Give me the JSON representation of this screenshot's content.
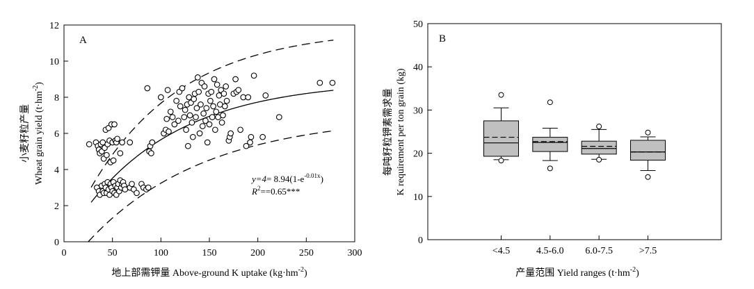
{
  "chart_data": [
    {
      "type": "scatter",
      "panel_label": "A",
      "xlabel": "地上部需钾量 Above-ground K uptake (kg·hm",
      "xlabel_sup": "-2",
      "xlabel_end": ")",
      "ylabel_cn": "小麦籽粒产量",
      "ylabel_en": "Wheat grain yield (t·hm",
      "ylabel_sup": "-2",
      "ylabel_end": ")",
      "xlim": [
        0,
        300
      ],
      "ylim": [
        0,
        12
      ],
      "xticks": [
        0,
        50,
        100,
        150,
        200,
        250,
        300
      ],
      "yticks": [
        0,
        2,
        4,
        6,
        8,
        10,
        12
      ],
      "equation_lhs": "y=4",
      "equation_mid": "= 8.94(1-e",
      "equation_sup": "-0.01x",
      "equation_end": ")",
      "r2_label": "R",
      "r2_sup": "2",
      "r2_value": "==0.65***",
      "fit_curve": {
        "a": 8.94,
        "b": 0.01,
        "x_range": [
          28,
          278
        ]
      },
      "upper_bound": {
        "a": 11.8,
        "b": 0.0105,
        "x_range": [
          28,
          278
        ]
      },
      "lower_bound": {
        "a": 7.0,
        "b": 0.0083,
        "x_range": [
          25,
          278
        ],
        "x0": 25
      },
      "points": [
        [
          26,
          5.4
        ],
        [
          33,
          5.5
        ],
        [
          35,
          5.3
        ],
        [
          36,
          5.1
        ],
        [
          37,
          4.9
        ],
        [
          38,
          5.4
        ],
        [
          39,
          5.0
        ],
        [
          40,
          5.5
        ],
        [
          41,
          4.6
        ],
        [
          42,
          5.2
        ],
        [
          43,
          6.2
        ],
        [
          44,
          4.8
        ],
        [
          45,
          5.4
        ],
        [
          46,
          6.3
        ],
        [
          47,
          5.6
        ],
        [
          48,
          4.4
        ],
        [
          49,
          6.5
        ],
        [
          50,
          5.5
        ],
        [
          51,
          4.5
        ],
        [
          52,
          6.5
        ],
        [
          53,
          5.6
        ],
        [
          54,
          5.5
        ],
        [
          55,
          5.7
        ],
        [
          58,
          4.9
        ],
        [
          60,
          5.5
        ],
        [
          34,
          3.0
        ],
        [
          36,
          2.8
        ],
        [
          37,
          2.6
        ],
        [
          39,
          3.1
        ],
        [
          40,
          2.8
        ],
        [
          41,
          2.7
        ],
        [
          42,
          3.2
        ],
        [
          43,
          3.0
        ],
        [
          44,
          2.7
        ],
        [
          45,
          3.3
        ],
        [
          46,
          2.9
        ],
        [
          47,
          2.6
        ],
        [
          48,
          3.2
        ],
        [
          49,
          3.0
        ],
        [
          50,
          2.8
        ],
        [
          51,
          3.3
        ],
        [
          52,
          2.7
        ],
        [
          53,
          3.1
        ],
        [
          54,
          2.6
        ],
        [
          55,
          3.0
        ],
        [
          56,
          3.2
        ],
        [
          57,
          2.8
        ],
        [
          58,
          3.4
        ],
        [
          59,
          3.0
        ],
        [
          60,
          3.2
        ],
        [
          61,
          3.3
        ],
        [
          62,
          3.1
        ],
        [
          63,
          2.9
        ],
        [
          68,
          3.0
        ],
        [
          70,
          3.2
        ],
        [
          72,
          2.9
        ],
        [
          75,
          2.7
        ],
        [
          80,
          3.2
        ],
        [
          82,
          3.0
        ],
        [
          85,
          2.9
        ],
        [
          87,
          3.0
        ],
        [
          68,
          5.5
        ],
        [
          86,
          8.5
        ],
        [
          88,
          5.0
        ],
        [
          89,
          5.3
        ],
        [
          90,
          4.9
        ],
        [
          91,
          5.5
        ],
        [
          100,
          8.0
        ],
        [
          103,
          6.0
        ],
        [
          105,
          6.2
        ],
        [
          106,
          6.8
        ],
        [
          107,
          8.4
        ],
        [
          108,
          6.1
        ],
        [
          110,
          7.2
        ],
        [
          112,
          6.9
        ],
        [
          114,
          6.5
        ],
        [
          116,
          7.8
        ],
        [
          118,
          6.7
        ],
        [
          119,
          8.3
        ],
        [
          120,
          7.5
        ],
        [
          122,
          8.5
        ],
        [
          124,
          6.9
        ],
        [
          125,
          7.3
        ],
        [
          126,
          6.2
        ],
        [
          127,
          7.6
        ],
        [
          128,
          5.3
        ],
        [
          129,
          8.0
        ],
        [
          130,
          7.0
        ],
        [
          131,
          7.7
        ],
        [
          132,
          6.6
        ],
        [
          133,
          5.8
        ],
        [
          134,
          7.9
        ],
        [
          135,
          8.2
        ],
        [
          136,
          6.9
        ],
        [
          137,
          7.4
        ],
        [
          138,
          9.1
        ],
        [
          139,
          8.3
        ],
        [
          140,
          6.0
        ],
        [
          141,
          7.6
        ],
        [
          142,
          8.8
        ],
        [
          143,
          6.4
        ],
        [
          144,
          7.1
        ],
        [
          145,
          8.6
        ],
        [
          146,
          6.7
        ],
        [
          147,
          7.4
        ],
        [
          148,
          5.5
        ],
        [
          149,
          8.2
        ],
        [
          150,
          6.5
        ],
        [
          151,
          7.8
        ],
        [
          152,
          8.3
        ],
        [
          153,
          6.9
        ],
        [
          154,
          7.5
        ],
        [
          155,
          9.0
        ],
        [
          156,
          6.2
        ],
        [
          157,
          7.2
        ],
        [
          158,
          8.7
        ],
        [
          159,
          6.9
        ],
        [
          160,
          8.1
        ],
        [
          161,
          7.6
        ],
        [
          162,
          8.4
        ],
        [
          163,
          6.6
        ],
        [
          164,
          7.0
        ],
        [
          165,
          8.2
        ],
        [
          166,
          7.5
        ],
        [
          167,
          8.6
        ],
        [
          168,
          7.8
        ],
        [
          170,
          5.6
        ],
        [
          171,
          5.8
        ],
        [
          172,
          6.0
        ],
        [
          175,
          8.2
        ],
        [
          177,
          9.0
        ],
        [
          178,
          8.3
        ],
        [
          180,
          8.4
        ],
        [
          182,
          6.2
        ],
        [
          185,
          8.0
        ],
        [
          188,
          5.3
        ],
        [
          190,
          8.0
        ],
        [
          192,
          5.5
        ],
        [
          193,
          5.8
        ],
        [
          196,
          9.2
        ],
        [
          205,
          5.8
        ],
        [
          208,
          8.1
        ],
        [
          222,
          6.9
        ],
        [
          264,
          8.8
        ],
        [
          277,
          8.8
        ]
      ]
    },
    {
      "type": "box",
      "panel_label": "B",
      "xlabel": "产量范围 Yield ranges (t·hm",
      "xlabel_sup": "-2",
      "xlabel_end": ")",
      "ylabel_cn": "每吨籽粒钾素需求量",
      "ylabel_en": "K requirement per ton grain (kg)",
      "ylim": [
        0,
        50
      ],
      "yticks": [
        0,
        10,
        20,
        30,
        40,
        50
      ],
      "categories": [
        "<4.5",
        "4.5-6.0",
        "6.0-7.5",
        ">7.5"
      ],
      "boxes": [
        {
          "whisker_low": 18.5,
          "q1": 19.3,
          "median": 22.4,
          "mean": 23.7,
          "q3": 27.5,
          "whisker_high": 30.5,
          "outliers": [
            33.5,
            18.3
          ]
        },
        {
          "whisker_low": 18.3,
          "q1": 20.4,
          "median": 22.5,
          "mean": 22.7,
          "q3": 23.7,
          "whisker_high": 25.8,
          "outliers": [
            31.8,
            16.5
          ]
        },
        {
          "whisker_low": 18.6,
          "q1": 19.8,
          "median": 21.1,
          "mean": 21.6,
          "q3": 22.8,
          "whisker_high": 25.5,
          "outliers": [
            26.2,
            18.5
          ]
        },
        {
          "whisker_low": 16.0,
          "q1": 18.4,
          "median": 20.3,
          "mean": 20.3,
          "q3": 23.0,
          "whisker_high": 23.8,
          "outliers": [
            24.8,
            14.5
          ]
        }
      ],
      "box_fill": "#c0c0c0"
    }
  ]
}
